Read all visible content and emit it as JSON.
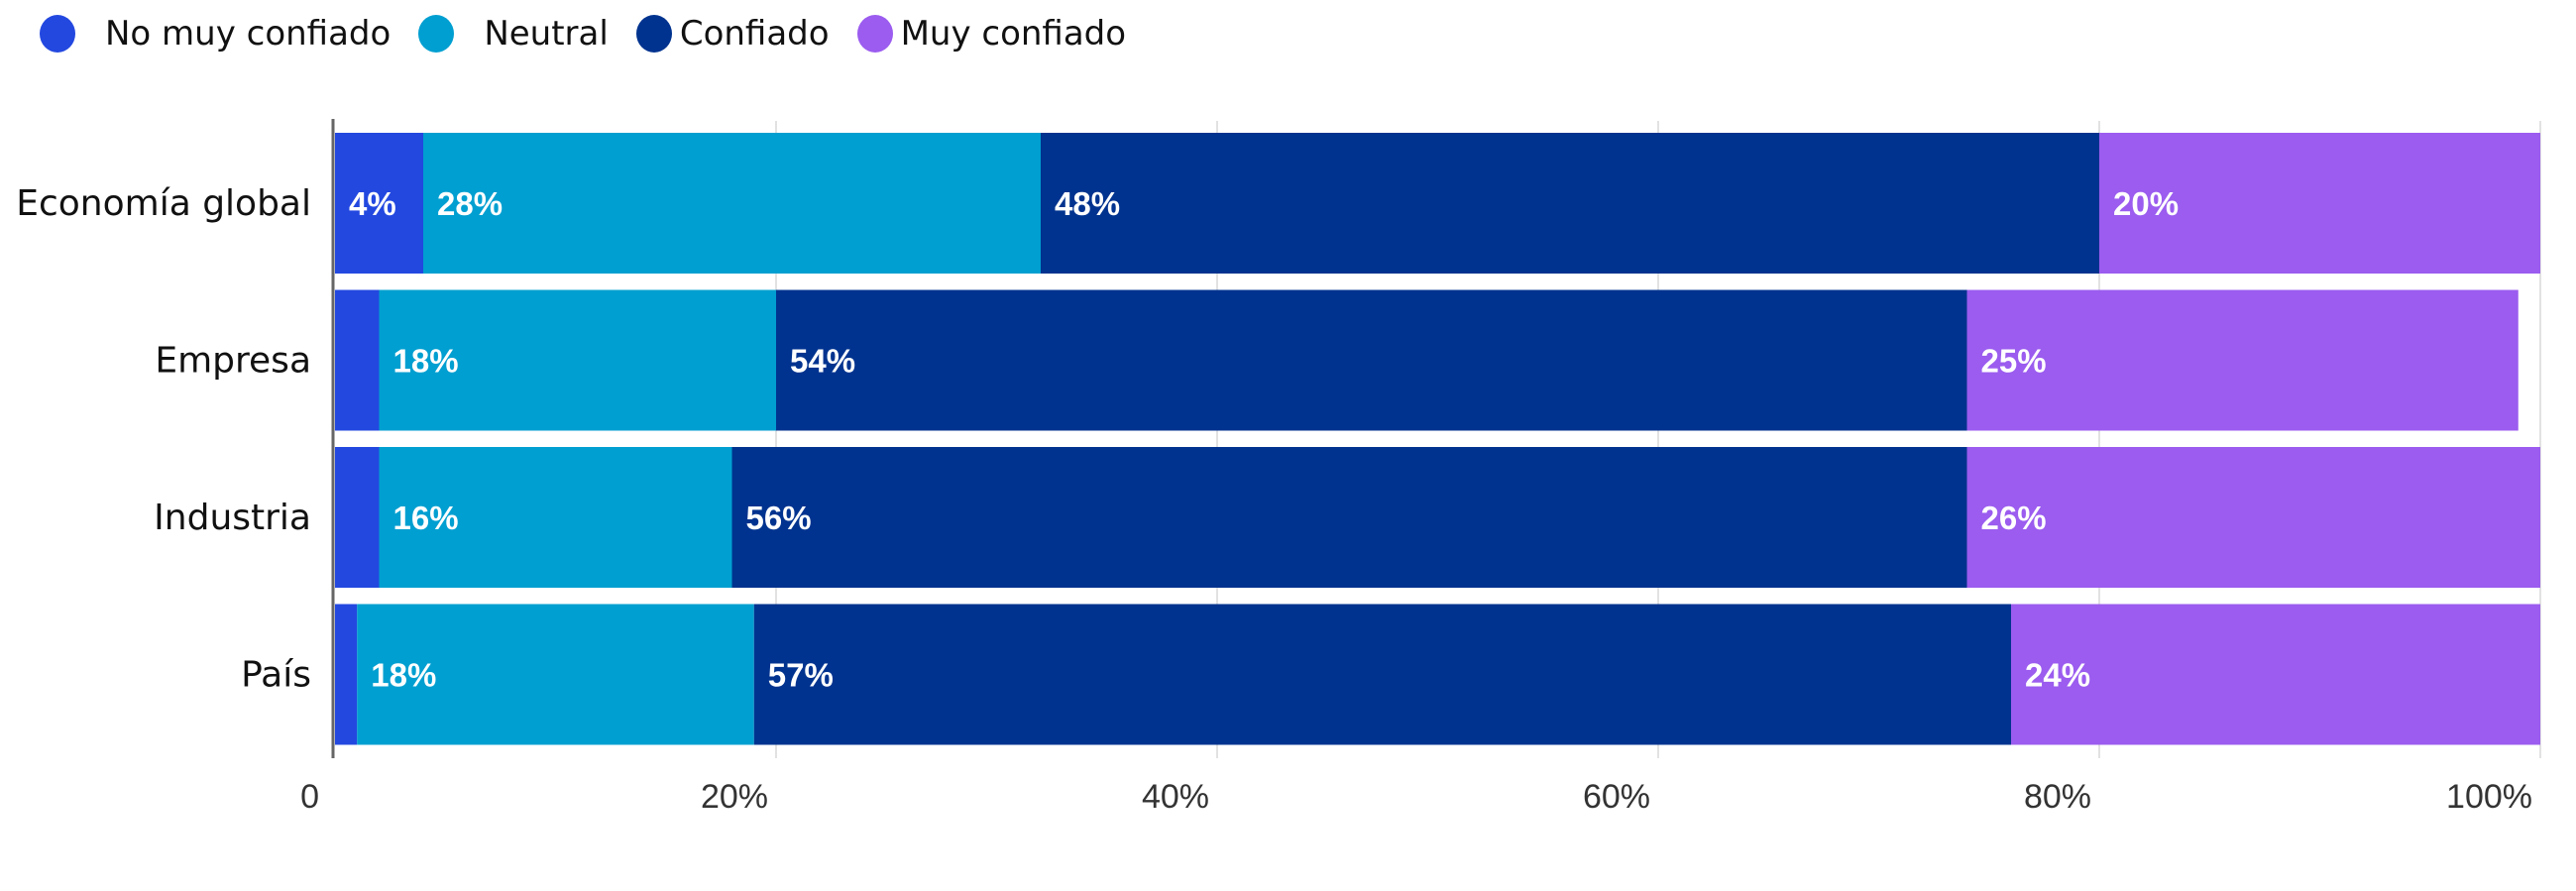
{
  "chart_data": {
    "type": "bar",
    "orientation": "horizontal",
    "stacked": true,
    "categories": [
      "Economía global",
      "Empresa",
      "Industria",
      "País"
    ],
    "series": [
      {
        "name": "No muy confiado",
        "color": "#2348e0",
        "values": [
          4,
          2,
          2,
          1
        ],
        "labels": [
          "4%",
          "",
          "",
          ""
        ]
      },
      {
        "name": "Neutral",
        "color": "#009fd1",
        "values": [
          28,
          18,
          16,
          18
        ],
        "labels": [
          "28%",
          "18%",
          "16%",
          "18%"
        ]
      },
      {
        "name": "Confiado",
        "color": "#00338f",
        "values": [
          48,
          54,
          56,
          57
        ],
        "labels": [
          "48%",
          "54%",
          "56%",
          "57%"
        ]
      },
      {
        "name": "Muy confiado",
        "color": "#9b5cef",
        "values": [
          20,
          25,
          26,
          24
        ],
        "labels": [
          "20%",
          "25%",
          "26%",
          "24%"
        ]
      }
    ],
    "xlim": [
      0,
      100
    ],
    "xticks": [
      0,
      20,
      40,
      60,
      80,
      100
    ],
    "xtick_labels": [
      "0",
      "20%",
      "40%",
      "60%",
      "80%",
      "100%"
    ],
    "grid": true,
    "legend_position": "top-left",
    "title": "",
    "xlabel": "",
    "ylabel": ""
  }
}
